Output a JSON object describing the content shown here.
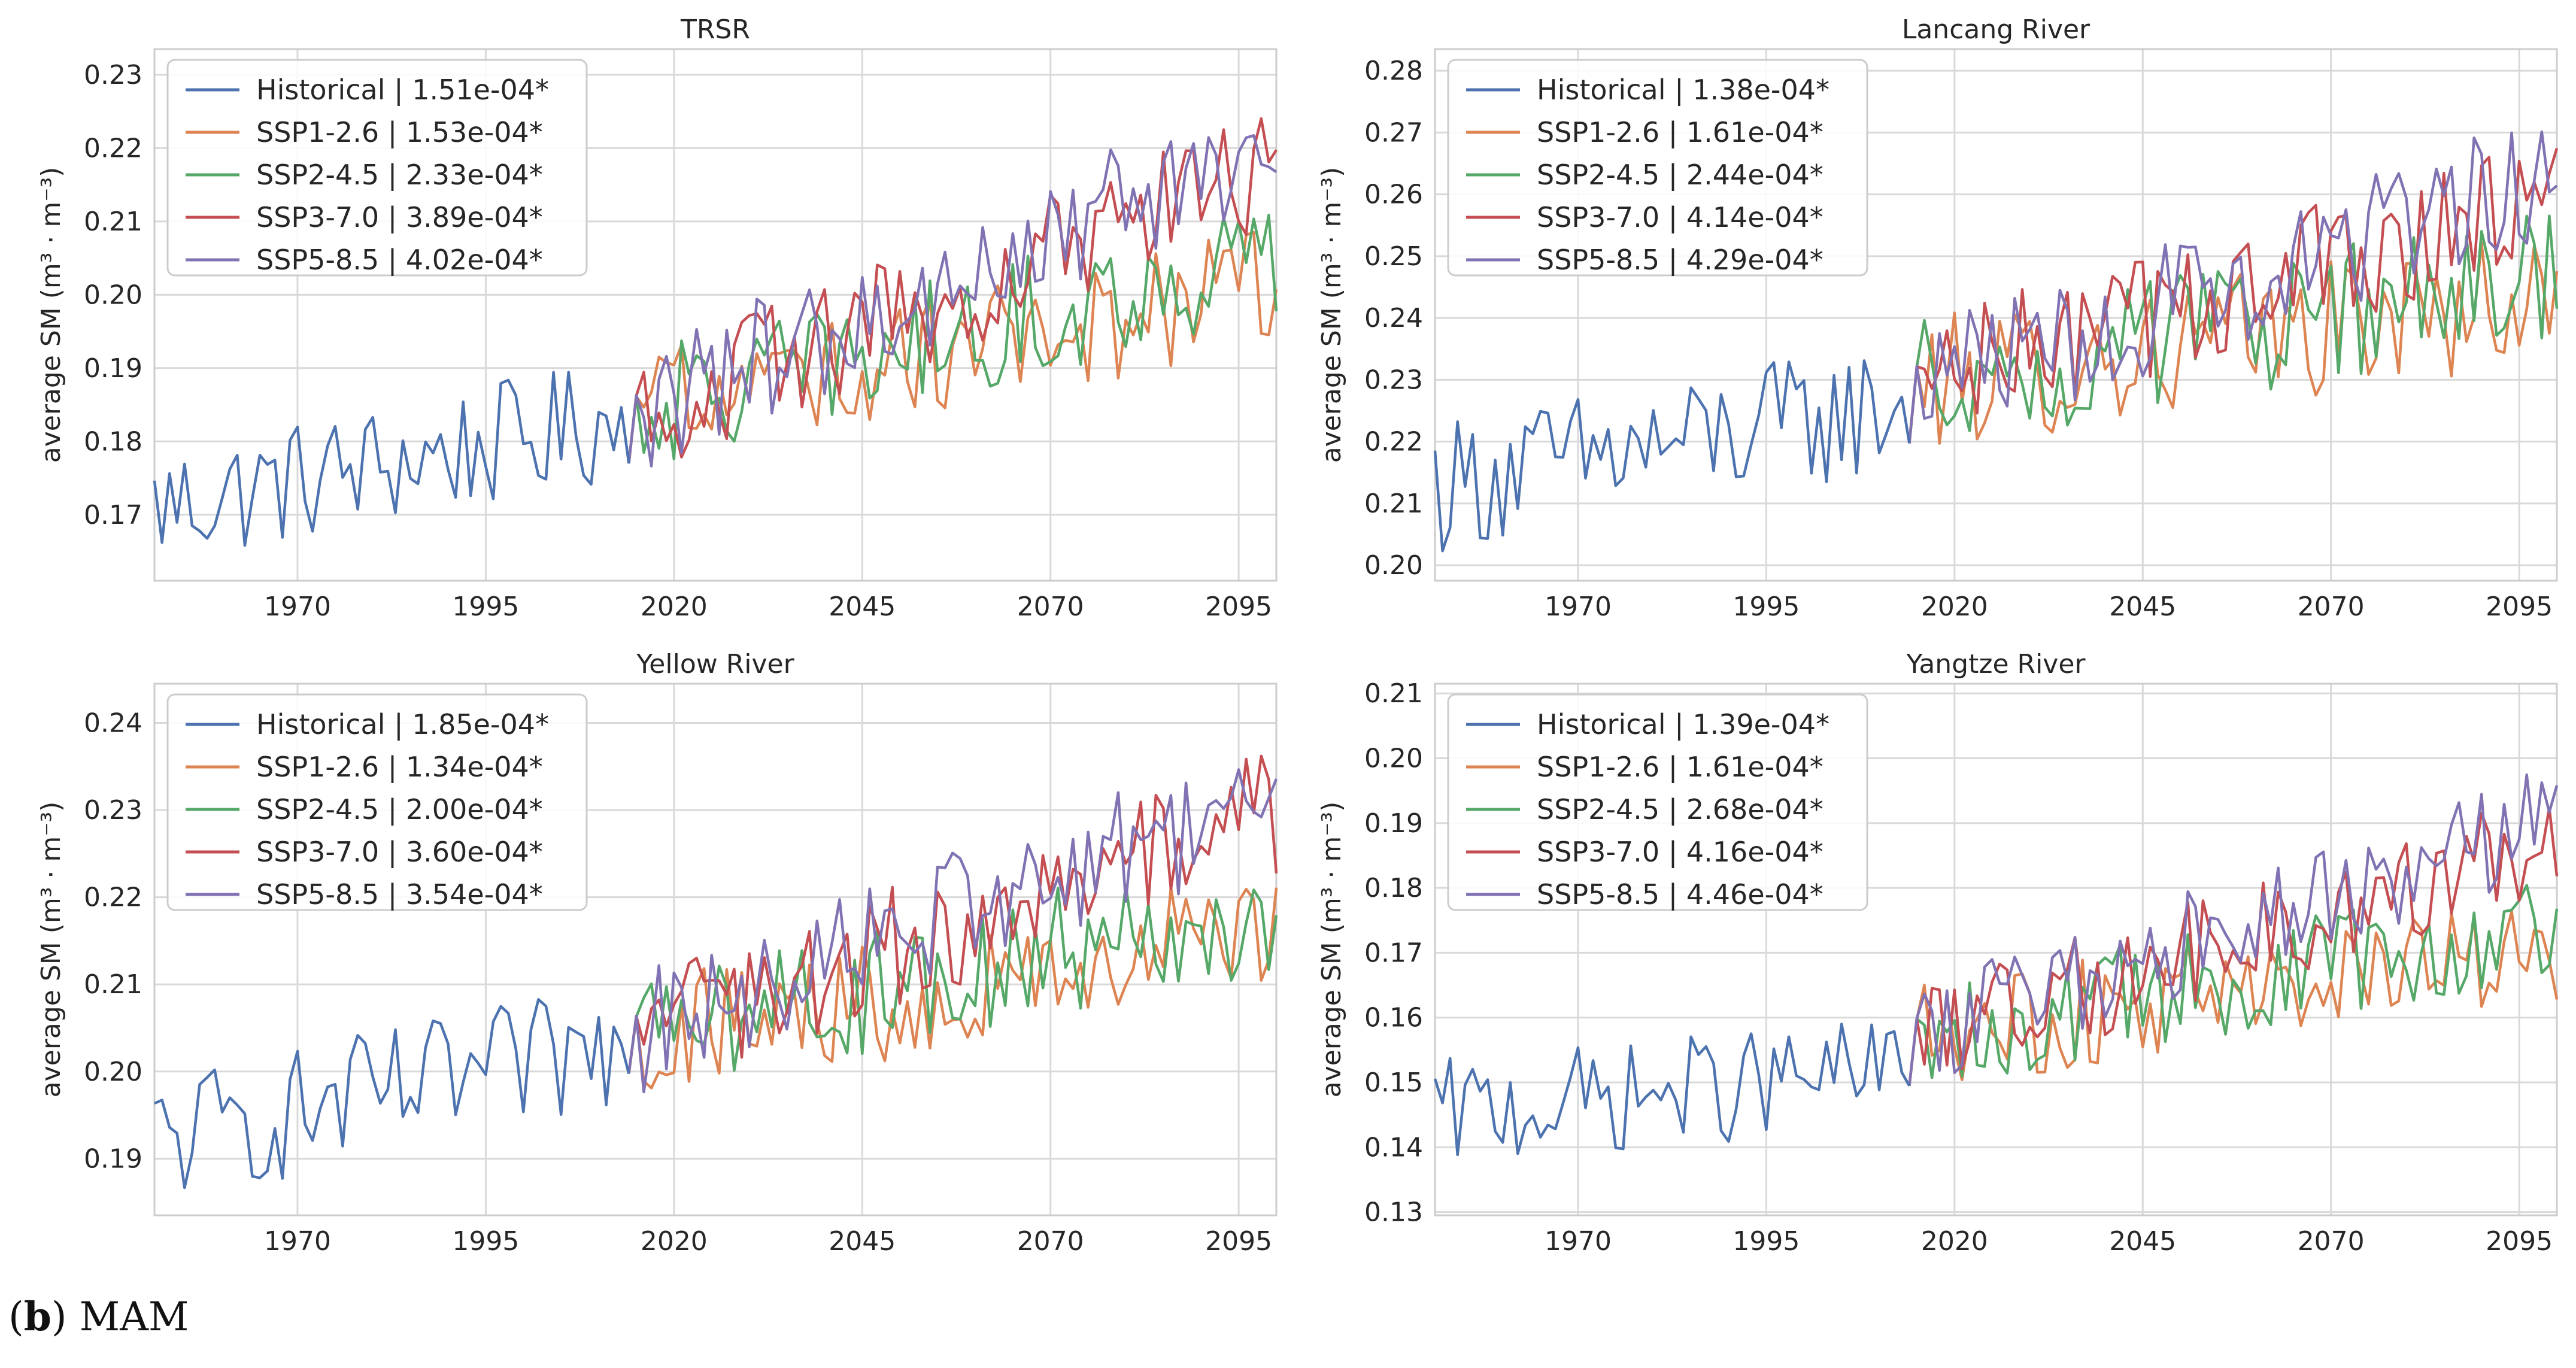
{
  "caption": {
    "letter": "b",
    "season": "MAM"
  },
  "style": {
    "series_colors": {
      "Historical": "#4c72b0",
      "SSP1-2.6": "#dd8452",
      "SSP2-4.5": "#55a868",
      "SSP3-7.0": "#c44e52",
      "SSP5-8.5": "#8172b3"
    },
    "grid_color": "#d9d9d9",
    "axis_color": "#cccccc"
  },
  "chart_data": [
    {
      "type": "line",
      "title": "TRSR",
      "xlabel": "",
      "ylabel": "average SM (m³ · m⁻³)",
      "xlim": [
        1951,
        2100
      ],
      "ylim": [
        0.161,
        0.2335
      ],
      "xticks": [
        1970,
        1995,
        2020,
        2045,
        2070,
        2095
      ],
      "yticks": [
        0.17,
        0.18,
        0.19,
        0.2,
        0.21,
        0.22,
        0.23
      ],
      "hist": {
        "start": 0.171,
        "end": 0.183,
        "amp": 0.0085
      },
      "ssp_start": 0.184,
      "ssp_amp": 0.0085,
      "series": [
        {
          "name": "Historical",
          "trend": "1.51e-04*"
        },
        {
          "name": "SSP1-2.6",
          "trend": "1.53e-04*",
          "end": 0.201
        },
        {
          "name": "SSP2-4.5",
          "trend": "2.33e-04*",
          "end": 0.205
        },
        {
          "name": "SSP3-7.0",
          "trend": "3.89e-04*",
          "end": 0.217
        },
        {
          "name": "SSP5-8.5",
          "trend": "4.02e-04*",
          "end": 0.221
        }
      ]
    },
    {
      "type": "line",
      "title": "Lancang River",
      "xlabel": "",
      "ylabel": "average SM (m³ · m⁻³)",
      "xlim": [
        1951,
        2100
      ],
      "ylim": [
        0.1975,
        0.2835
      ],
      "xticks": [
        1970,
        1995,
        2020,
        2045,
        2070,
        2095
      ],
      "yticks": [
        0.2,
        0.21,
        0.22,
        0.23,
        0.24,
        0.25,
        0.26,
        0.27,
        0.28
      ],
      "hist": {
        "start": 0.213,
        "end": 0.226,
        "amp": 0.011
      },
      "ssp_start": 0.229,
      "ssp_amp": 0.011,
      "series": [
        {
          "name": "Historical",
          "trend": "1.38e-04*"
        },
        {
          "name": "SSP1-2.6",
          "trend": "1.61e-04*",
          "end": 0.244
        },
        {
          "name": "SSP2-4.5",
          "trend": "2.44e-04*",
          "end": 0.247
        },
        {
          "name": "SSP3-7.0",
          "trend": "4.14e-04*",
          "end": 0.26
        },
        {
          "name": "SSP5-8.5",
          "trend": "4.29e-04*",
          "end": 0.263
        }
      ]
    },
    {
      "type": "line",
      "title": "Yellow River",
      "xlabel": "",
      "ylabel": "average SM (m³ · m⁻³)",
      "xlim": [
        1951,
        2100
      ],
      "ylim": [
        0.1835,
        0.2445
      ],
      "xticks": [
        1970,
        1995,
        2020,
        2045,
        2070,
        2095
      ],
      "yticks": [
        0.19,
        0.2,
        0.21,
        0.22,
        0.23,
        0.24
      ],
      "hist": {
        "start": 0.192,
        "end": 0.203,
        "amp": 0.0075
      },
      "ssp_start": 0.204,
      "ssp_amp": 0.0075,
      "series": [
        {
          "name": "Historical",
          "trend": "1.85e-04*"
        },
        {
          "name": "SSP1-2.6",
          "trend": "1.34e-04*",
          "end": 0.216
        },
        {
          "name": "SSP2-4.5",
          "trend": "2.00e-04*",
          "end": 0.219
        },
        {
          "name": "SSP3-7.0",
          "trend": "3.60e-04*",
          "end": 0.23
        },
        {
          "name": "SSP5-8.5",
          "trend": "3.54e-04*",
          "end": 0.232
        }
      ]
    },
    {
      "type": "line",
      "title": "Yangtze River",
      "xlabel": "",
      "ylabel": "average SM (m³ · m⁻³)",
      "xlim": [
        1951,
        2100
      ],
      "ylim": [
        0.1295,
        0.2115
      ],
      "xticks": [
        1970,
        1995,
        2020,
        2045,
        2070,
        2095
      ],
      "yticks": [
        0.13,
        0.14,
        0.15,
        0.16,
        0.17,
        0.18,
        0.19,
        0.2,
        0.21
      ],
      "hist": {
        "start": 0.145,
        "end": 0.152,
        "amp": 0.0085
      },
      "ssp_start": 0.157,
      "ssp_amp": 0.0085,
      "series": [
        {
          "name": "Historical",
          "trend": "1.39e-04*"
        },
        {
          "name": "SSP1-2.6",
          "trend": "1.61e-04*",
          "end": 0.171
        },
        {
          "name": "SSP2-4.5",
          "trend": "2.68e-04*",
          "end": 0.175
        },
        {
          "name": "SSP3-7.0",
          "trend": "4.16e-04*",
          "end": 0.187
        },
        {
          "name": "SSP5-8.5",
          "trend": "4.46e-04*",
          "end": 0.191
        }
      ]
    }
  ]
}
